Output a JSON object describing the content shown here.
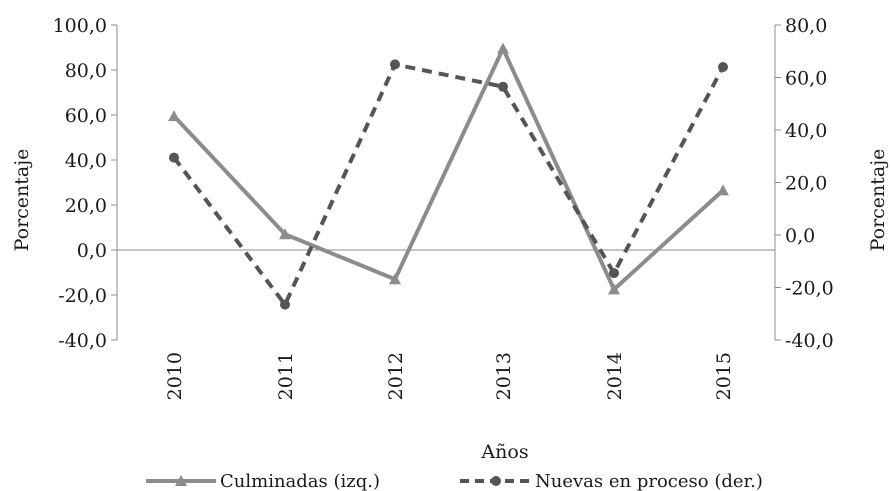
{
  "chart_data": {
    "type": "line",
    "categories": [
      "2010",
      "2011",
      "2012",
      "2013",
      "2014",
      "2015"
    ],
    "xlabel": "Años",
    "ylabel_left": "Porcentaje",
    "ylabel_right": "Porcentaje",
    "ylim_left": [
      -40,
      100
    ],
    "ylim_right": [
      -40,
      80
    ],
    "yticks_left": [
      "100,0",
      "80,0",
      "60,0",
      "40,0",
      "20,0",
      "0,0",
      "-20,0",
      "-40,0"
    ],
    "yticks_right": [
      "80,0",
      "60,0",
      "40,0",
      "20,0",
      "0,0",
      "-20,0",
      "-40,0"
    ],
    "grid": false,
    "legend_position": "bottom",
    "series": [
      {
        "name": "Culminadas (izq.)",
        "axis": "left",
        "values": [
          59.5,
          7.0,
          -13.0,
          89.5,
          -17.5,
          26.5
        ],
        "color": "#8c8c8c",
        "style": "solid",
        "marker": "triangle"
      },
      {
        "name": "Nuevas en proceso (der.)",
        "axis": "right",
        "values": [
          29.5,
          -26.5,
          65.0,
          56.5,
          -14.5,
          64.0
        ],
        "color": "#555555",
        "style": "dashed",
        "marker": "circle"
      }
    ]
  }
}
